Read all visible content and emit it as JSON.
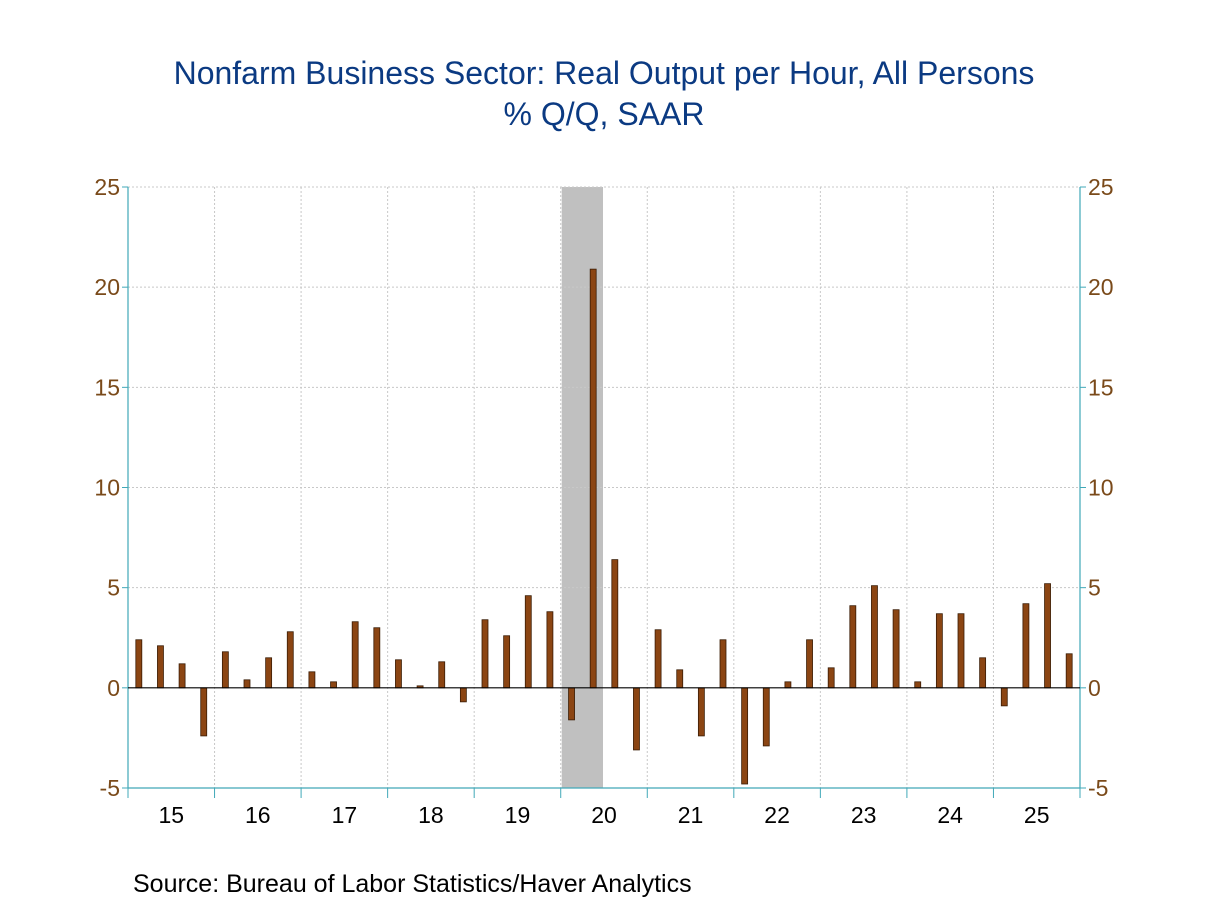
{
  "chart_data": {
    "type": "bar",
    "title": "Nonfarm Business Sector: Real Output per Hour, All Persons",
    "subtitle": "% Q/Q, SAAR",
    "xlabel": "",
    "ylabel": "",
    "ylim": [
      -5,
      25
    ],
    "yticks": [
      "-5",
      "0",
      "5",
      "10",
      "15",
      "20",
      "25"
    ],
    "xticks": [
      "15",
      "16",
      "17",
      "18",
      "19",
      "20",
      "21",
      "22",
      "23",
      "24",
      "25"
    ],
    "x_years": [
      2015,
      2016,
      2017,
      2018,
      2019,
      2020,
      2021,
      2022,
      2023,
      2024,
      2025
    ],
    "grid": true,
    "dual_axis": true,
    "recession_shading": {
      "start": "2020Q1",
      "end": "2020Q2"
    },
    "categories": [
      "2015Q1",
      "2015Q2",
      "2015Q3",
      "2015Q4",
      "2016Q1",
      "2016Q2",
      "2016Q3",
      "2016Q4",
      "2017Q1",
      "2017Q2",
      "2017Q3",
      "2017Q4",
      "2018Q1",
      "2018Q2",
      "2018Q3",
      "2018Q4",
      "2019Q1",
      "2019Q2",
      "2019Q3",
      "2019Q4",
      "2020Q1",
      "2020Q2",
      "2020Q3",
      "2020Q4",
      "2021Q1",
      "2021Q2",
      "2021Q3",
      "2021Q4",
      "2022Q1",
      "2022Q2",
      "2022Q3",
      "2022Q4",
      "2023Q1",
      "2023Q2",
      "2023Q3",
      "2023Q4",
      "2024Q1",
      "2024Q2",
      "2024Q3",
      "2024Q4",
      "2025Q1",
      "2025Q2",
      "2025Q3",
      "2025Q4"
    ],
    "values": [
      2.4,
      2.1,
      1.2,
      -2.4,
      1.8,
      0.4,
      1.5,
      2.8,
      0.8,
      0.3,
      3.3,
      3.0,
      1.4,
      0.1,
      1.3,
      -0.7,
      3.4,
      2.6,
      4.6,
      3.8,
      -1.6,
      20.9,
      6.4,
      -3.1,
      2.9,
      0.9,
      -2.4,
      2.4,
      -4.8,
      -2.9,
      0.3,
      2.4,
      1.0,
      4.1,
      5.1,
      3.9,
      0.3,
      3.7,
      3.7,
      1.5,
      -0.9,
      4.2,
      5.2,
      1.7
    ],
    "bar_color": "#8b4513",
    "values_extra": [
      0.9
    ]
  },
  "source": "Source:  Bureau of Labor Statistics/Haver Analytics",
  "colors": {
    "title": "#0b3a82",
    "tick_labels": "#7a4a1a",
    "axis": "#40a8b8",
    "recession": "#c0c0c0",
    "grid": "#c8c8c8"
  }
}
